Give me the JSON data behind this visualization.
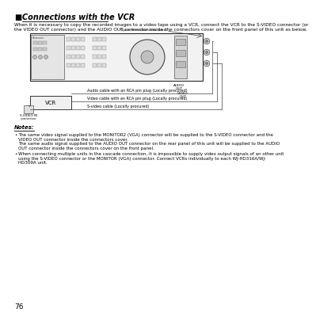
{
  "title": "Connections with the VCR",
  "title_bullet": "■",
  "intro_line1": "When it is necessary to copy the recorded images to a video tape using a VCR, connect the VCR to the S-VIDEO connector (or",
  "intro_line2": "the VIDEO OUT connector) and the AUDIO OUT connector inside the connectors cover on the front panel of this unit as below.",
  "diagram_label_top": "Open the connectors cover.",
  "audio_label1": "AUDIO",
  "audio_label2": "OUT",
  "video_label1": "VIDEO",
  "video_label2": "OUT",
  "vcr_label": "VCR",
  "svideo_label1": "S-VIDEO IN",
  "svideo_label2": "connector",
  "cable1_label": "Audio cable with an RCA pin plug (Locally procured)",
  "cable2_label": "Video cable with an RCA pin plug (Locally procured)",
  "cable3_label": "S-video cable (Locally procured)",
  "notes_title": "Notes:",
  "note1_bullet": "•",
  "note1_line1": "The same video signal supplied to the MONITOR2 (VGA) connector will be supplied to the S-VIDEO connector and the",
  "note1_line2": "VIDEO OUT connector inside the connectors cover.",
  "note1_line3": "The same audio signal supplied to the AUDIO OUT connector on the rear panel of this unit will be supplied to the AUDIO",
  "note1_line4": "OUT connector inside the connectors cover on the front panel.",
  "note2_bullet": "•",
  "note2_line1": "When connecting multiple units in the cascade connection, it is impossible to supply video output signals of an other unit",
  "note2_line2": "using the S-VIDEO connector or the MONITOR (VGA) connector. Connect VCRs individually to each WJ-HD316A/WJ-",
  "note2_line3": "HD309A unit.",
  "page_number": "76",
  "bg_color": "#ffffff",
  "text_color": "#000000",
  "gray_text": "#555555"
}
